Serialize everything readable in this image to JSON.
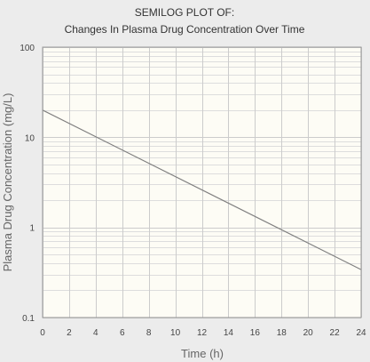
{
  "chart_data": {
    "type": "line",
    "title": "SEMILOG PLOT OF:",
    "subtitle": "Changes In Plasma Drug Concentration Over Time",
    "xlabel": "Time  (h)",
    "ylabel": "Plasma Drug Concentration  (mg/L)",
    "y_scale": "log",
    "xlim": [
      0,
      24
    ],
    "ylim": [
      0.1,
      100
    ],
    "x_ticks": [
      0,
      2,
      4,
      6,
      8,
      10,
      12,
      14,
      16,
      18,
      20,
      22,
      24
    ],
    "x_tick_labels": [
      "0",
      "2",
      "4",
      "6",
      "8",
      "10",
      "12",
      "14",
      "16",
      "18",
      "20",
      "22",
      "24"
    ],
    "y_ticks": [
      0.1,
      1,
      10,
      100
    ],
    "y_tick_labels": [
      "0.1",
      "1",
      "10",
      "100"
    ],
    "grid": true,
    "series": [
      {
        "x": [
          0,
          24
        ],
        "y": [
          20,
          0.34
        ],
        "color": "#808080"
      }
    ],
    "colors": {
      "background": "#ececec",
      "plot_background": "#fdfcf5",
      "grid_major": "#cccccc",
      "grid_minor": "#dddddd",
      "line": "#808080"
    }
  }
}
